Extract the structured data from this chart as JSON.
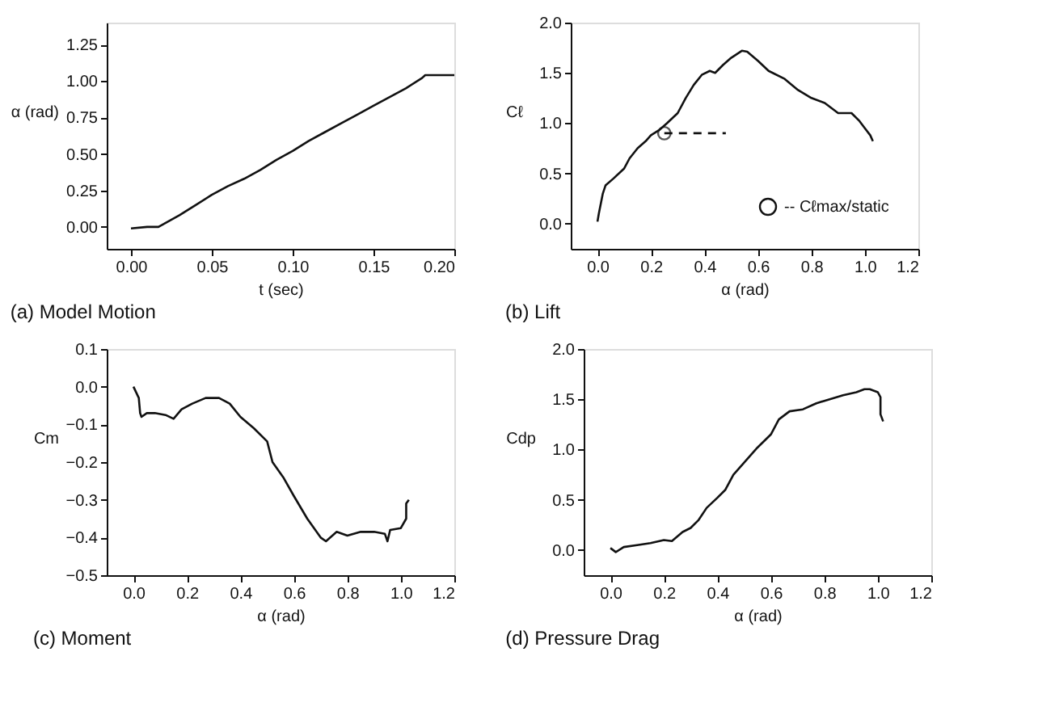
{
  "chart_data": [
    {
      "type": "line",
      "title": "(a) Model Motion",
      "xlabel": "t (sec)",
      "ylabel": "α (rad)",
      "xlim": [
        -0.015,
        0.2
      ],
      "ylim": [
        -0.15,
        1.4
      ],
      "xticks": [
        {
          "value": 0,
          "label": "0.00"
        },
        0.05,
        {
          "value": 0.1,
          "label": "0.10"
        },
        0.15,
        {
          "value": 0.2,
          "label": "0.20"
        }
      ],
      "yticks": [
        {
          "value": 0,
          "label": "0.00"
        },
        0.25,
        {
          "value": 0.5,
          "label": "0.50"
        },
        0.75,
        {
          "value": 1,
          "label": "1.00"
        },
        1.25
      ],
      "grid": false,
      "legend": false,
      "series": [
        {
          "color": "#111111",
          "x": [
            0,
            0.01,
            0.017,
            0.03,
            0.04,
            0.05,
            0.06,
            0.07,
            0.08,
            0.09,
            0.1,
            0.11,
            0.12,
            0.13,
            0.14,
            0.15,
            0.16,
            0.17,
            0.18,
            0.182,
            0.19,
            0.2
          ],
          "values": [
            -0.01,
            0,
            0,
            0.08,
            0.15,
            0.22,
            0.28,
            0.33,
            0.39,
            0.46,
            0.52,
            0.59,
            0.65,
            0.71,
            0.77,
            0.83,
            0.89,
            0.95,
            1.02,
            1.04,
            1.04,
            1.04
          ]
        }
      ]
    },
    {
      "type": "line",
      "title": "(b) Lift",
      "xlabel": "α (rad)",
      "ylabel": "Cℓ",
      "xlim": [
        -0.1,
        1.2
      ],
      "ylim": [
        -0.25,
        2.0
      ],
      "xticks": [
        {
          "value": 0,
          "label": "0.0"
        },
        0.2,
        0.4,
        0.6,
        0.8,
        {
          "value": 1,
          "label": "1.0"
        },
        1.2
      ],
      "yticks": [
        {
          "value": 0,
          "label": "0.0"
        },
        0.5,
        {
          "value": 1,
          "label": "1.0"
        },
        1.5,
        {
          "value": 2,
          "label": "2.0"
        }
      ],
      "grid": false,
      "legend": "bottom right",
      "series": [
        {
          "color": "#111111",
          "x": [
            0,
            0.005,
            0.02,
            0.03,
            0.06,
            0.1,
            0.12,
            0.15,
            0.18,
            0.2,
            0.23,
            0.26,
            0.3,
            0.33,
            0.36,
            0.39,
            0.42,
            0.44,
            0.47,
            0.5,
            0.54,
            0.56,
            0.6,
            0.64,
            0.7,
            0.75,
            0.8,
            0.85,
            0.9,
            0.95,
            0.98,
            1.0,
            1.02,
            1.03
          ],
          "values": [
            0.02,
            0.1,
            0.3,
            0.38,
            0.45,
            0.55,
            0.65,
            0.75,
            0.82,
            0.88,
            0.93,
            1.0,
            1.1,
            1.25,
            1.38,
            1.48,
            1.52,
            1.5,
            1.58,
            1.65,
            1.72,
            1.71,
            1.62,
            1.52,
            1.44,
            1.33,
            1.25,
            1.2,
            1.1,
            1.1,
            1.02,
            0.95,
            0.88,
            0.82
          ]
        },
        {
          "type": "line",
          "color": "#111111",
          "line_style": "dashed",
          "x": [
            0.25,
            0.48
          ],
          "values": [
            0.9,
            0.9
          ]
        },
        {
          "type": "scatter",
          "name": "-- Cℓmax/static",
          "color": "#111111",
          "marker": "circle",
          "x": [
            0.25
          ],
          "values": [
            0.9
          ]
        }
      ]
    },
    {
      "type": "line",
      "title": "(c) Moment",
      "xlabel": "α (rad)",
      "ylabel": "Cm",
      "xlim": [
        -0.1,
        1.2
      ],
      "ylim": [
        -0.5,
        0.1
      ],
      "xticks": [
        {
          "value": 0,
          "label": "0.0"
        },
        0.2,
        0.4,
        0.6,
        0.8,
        {
          "value": 1,
          "label": "1.0"
        },
        1.2
      ],
      "yticks": [
        {
          "value": -0.5,
          "label": "−0.5"
        },
        {
          "value": -0.4,
          "label": "−0.4"
        },
        {
          "value": -0.3,
          "label": "−0.3"
        },
        {
          "value": -0.2,
          "label": "−0.2"
        },
        {
          "value": -0.1,
          "label": "−0.1"
        },
        {
          "value": 0,
          "label": "0.0"
        },
        0.1
      ],
      "grid": false,
      "legend": false,
      "series": [
        {
          "color": "#111111",
          "x": [
            0,
            0.02,
            0.025,
            0.03,
            0.05,
            0.08,
            0.12,
            0.15,
            0.18,
            0.22,
            0.27,
            0.32,
            0.36,
            0.4,
            0.45,
            0.5,
            0.52,
            0.56,
            0.6,
            0.65,
            0.7,
            0.72,
            0.76,
            0.8,
            0.85,
            0.9,
            0.94,
            0.95,
            0.96,
            1.0,
            1.02,
            1.02,
            1.03
          ],
          "values": [
            0,
            -0.03,
            -0.07,
            -0.08,
            -0.07,
            -0.07,
            -0.075,
            -0.085,
            -0.06,
            -0.045,
            -0.03,
            -0.03,
            -0.045,
            -0.08,
            -0.11,
            -0.145,
            -0.2,
            -0.24,
            -0.29,
            -0.35,
            -0.4,
            -0.41,
            -0.385,
            -0.395,
            -0.385,
            -0.385,
            -0.39,
            -0.41,
            -0.38,
            -0.375,
            -0.35,
            -0.31,
            -0.3
          ]
        }
      ]
    },
    {
      "type": "line",
      "title": "(d) Pressure Drag",
      "xlabel": "α (rad)",
      "ylabel": "Cdp",
      "xlim": [
        -0.1,
        1.2
      ],
      "ylim": [
        -0.25,
        2.0
      ],
      "xticks": [
        {
          "value": 0,
          "label": "0.0"
        },
        0.2,
        0.4,
        0.6,
        0.8,
        {
          "value": 1,
          "label": "1.0"
        },
        1.2
      ],
      "yticks": [
        {
          "value": 0,
          "label": "0.0"
        },
        0.5,
        {
          "value": 1,
          "label": "1.0"
        },
        1.5,
        {
          "value": 2,
          "label": "2.0"
        }
      ],
      "grid": false,
      "legend": false,
      "series": [
        {
          "color": "#111111",
          "x": [
            0,
            0.02,
            0.05,
            0.1,
            0.15,
            0.2,
            0.23,
            0.27,
            0.3,
            0.33,
            0.36,
            0.4,
            0.43,
            0.46,
            0.5,
            0.55,
            0.6,
            0.63,
            0.67,
            0.72,
            0.77,
            0.82,
            0.87,
            0.92,
            0.95,
            0.97,
            1.0,
            1.01,
            1.01,
            1.02
          ],
          "values": [
            0.02,
            -0.02,
            0.03,
            0.05,
            0.07,
            0.1,
            0.09,
            0.18,
            0.22,
            0.3,
            0.42,
            0.52,
            0.6,
            0.75,
            0.87,
            1.02,
            1.15,
            1.3,
            1.38,
            1.4,
            1.46,
            1.5,
            1.54,
            1.57,
            1.6,
            1.6,
            1.57,
            1.52,
            1.35,
            1.28
          ]
        }
      ]
    }
  ]
}
